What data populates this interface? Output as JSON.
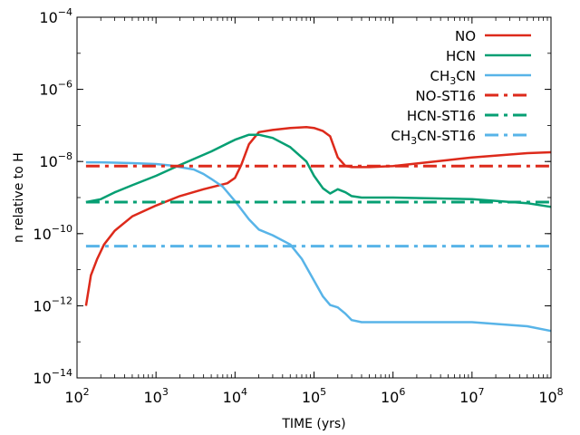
{
  "chart_data": {
    "type": "line",
    "title": "",
    "xlabel": "TIME (yrs)",
    "ylabel": "n relative to H",
    "xscale": "log",
    "yscale": "log",
    "xlim": [
      100,
      100000000
    ],
    "ylim": [
      1e-14,
      0.0001
    ],
    "xticks": [
      {
        "value": 100,
        "base": "10",
        "exp": "2"
      },
      {
        "value": 1000,
        "base": "10",
        "exp": "3"
      },
      {
        "value": 10000,
        "base": "10",
        "exp": "4"
      },
      {
        "value": 100000,
        "base": "10",
        "exp": "5"
      },
      {
        "value": 1000000,
        "base": "10",
        "exp": "6"
      },
      {
        "value": 10000000,
        "base": "10",
        "exp": "7"
      },
      {
        "value": 100000000,
        "base": "10",
        "exp": "8"
      }
    ],
    "yticks": [
      {
        "value": 1e-14,
        "base": "10",
        "exp": "−14"
      },
      {
        "value": 1e-12,
        "base": "10",
        "exp": "−12"
      },
      {
        "value": 1e-10,
        "base": "10",
        "exp": "−10"
      },
      {
        "value": 1e-08,
        "base": "10",
        "exp": "−8"
      },
      {
        "value": 1e-06,
        "base": "10",
        "exp": "−6"
      },
      {
        "value": 0.0001,
        "base": "10",
        "exp": "−4"
      }
    ],
    "legend_position": "top-right",
    "series": [
      {
        "name": "NO",
        "label_main": "NO",
        "label_sub": "",
        "label_tail": "",
        "color": "#dd2a1b",
        "style": "solid",
        "x": [
          130,
          150,
          180,
          220,
          300,
          500,
          1000,
          2000,
          4000,
          8000,
          10000,
          12000,
          15000,
          20000,
          30000,
          50000,
          80000,
          100000,
          130000,
          160000,
          200000,
          250000,
          300000,
          500000,
          1000000,
          5000000,
          10000000,
          50000000,
          100000000
        ],
        "y": [
          1e-12,
          7e-12,
          2e-11,
          5e-11,
          1.2e-10,
          3e-10,
          6e-10,
          1.1e-09,
          1.7e-09,
          2.5e-09,
          3.5e-09,
          8e-09,
          3e-08,
          6.5e-08,
          7.5e-08,
          8.5e-08,
          9e-08,
          8.5e-08,
          7e-08,
          5e-08,
          1.3e-08,
          7.5e-09,
          7e-09,
          7e-09,
          7.5e-09,
          1.1e-08,
          1.3e-08,
          1.7e-08,
          1.8e-08
        ]
      },
      {
        "name": "HCN",
        "label_main": "HCN",
        "label_sub": "",
        "label_tail": "",
        "color": "#069f73",
        "style": "solid",
        "x": [
          130,
          200,
          300,
          500,
          1000,
          2000,
          5000,
          10000,
          15000,
          20000,
          30000,
          50000,
          80000,
          100000,
          130000,
          160000,
          200000,
          250000,
          300000,
          400000,
          1000000,
          10000000,
          50000000,
          100000000
        ],
        "y": [
          7.5e-10,
          9e-10,
          1.4e-09,
          2.2e-09,
          4e-09,
          8e-09,
          1.9e-08,
          4e-08,
          5.5e-08,
          5.5e-08,
          4.5e-08,
          2.5e-08,
          1e-08,
          4e-09,
          1.8e-09,
          1.3e-09,
          1.7e-09,
          1.4e-09,
          1.1e-09,
          1e-09,
          1e-09,
          9e-10,
          7e-10,
          5.5e-10
        ]
      },
      {
        "name": "CH3CN",
        "label_main": "CH",
        "label_sub": "3",
        "label_tail": "CN",
        "color": "#58b4e8",
        "style": "solid",
        "x": [
          130,
          200,
          300,
          500,
          1000,
          1500,
          2000,
          3000,
          4000,
          5000,
          7000,
          10000,
          15000,
          20000,
          30000,
          50000,
          70000,
          100000,
          130000,
          160000,
          200000,
          250000,
          300000,
          400000,
          1000000,
          10000000,
          50000000,
          100000000
        ],
        "y": [
          9.5e-09,
          9.5e-09,
          9.3e-09,
          9e-09,
          8.5e-09,
          7.8e-09,
          7e-09,
          6e-09,
          4.5e-09,
          3.3e-09,
          2e-09,
          8e-10,
          2.5e-10,
          1.3e-10,
          9e-11,
          5e-11,
          2e-11,
          5e-12,
          1.8e-12,
          1.05e-12,
          9e-13,
          6e-13,
          4e-13,
          3.5e-13,
          3.5e-13,
          3.5e-13,
          2.7e-13,
          2e-13
        ]
      },
      {
        "name": "NO-ST16",
        "label_main": "NO-ST16",
        "label_sub": "",
        "label_tail": "",
        "color": "#dd2a1b",
        "style": "dashdot",
        "x": [
          130,
          100000000
        ],
        "y": [
          7.5e-09,
          7.5e-09
        ]
      },
      {
        "name": "HCN-ST16",
        "label_main": "HCN-ST16",
        "label_sub": "",
        "label_tail": "",
        "color": "#069f73",
        "style": "dashdot",
        "x": [
          130,
          100000000
        ],
        "y": [
          7.5e-10,
          7.5e-10
        ]
      },
      {
        "name": "CH3CN-ST16",
        "label_main": "CH",
        "label_sub": "3",
        "label_tail": "CN-ST16",
        "color": "#58b4e8",
        "style": "dashdot",
        "x": [
          130,
          100000000
        ],
        "y": [
          4.5e-11,
          4.5e-11
        ]
      }
    ]
  }
}
